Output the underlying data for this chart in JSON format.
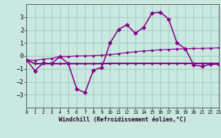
{
  "xlabel": "Windchill (Refroidissement éolien,°C)",
  "background_color": "#c8e8e0",
  "grid_color": "#a0c8bc",
  "line_color": "#880088",
  "x": [
    0,
    1,
    2,
    3,
    4,
    5,
    6,
    7,
    8,
    9,
    10,
    11,
    12,
    13,
    14,
    15,
    16,
    17,
    18,
    19,
    20,
    21,
    22,
    23
  ],
  "y_main": [
    -0.3,
    -1.15,
    -0.55,
    -0.6,
    -0.05,
    -0.6,
    -2.55,
    -2.85,
    -1.1,
    -0.9,
    1.0,
    2.05,
    2.4,
    1.75,
    2.2,
    3.3,
    3.38,
    2.85,
    1.0,
    0.55,
    -0.7,
    -0.8,
    -0.65,
    -0.65
  ],
  "y_flat": [
    -0.3,
    -0.6,
    -0.6,
    -0.6,
    -0.6,
    -0.6,
    -0.6,
    -0.6,
    -0.6,
    -0.6,
    -0.58,
    -0.58,
    -0.58,
    -0.58,
    -0.58,
    -0.58,
    -0.58,
    -0.58,
    -0.58,
    -0.58,
    -0.58,
    -0.58,
    -0.58,
    -0.58
  ],
  "y_trend": [
    -0.3,
    -0.35,
    -0.25,
    -0.2,
    -0.05,
    -0.05,
    -0.0,
    0.0,
    0.02,
    0.05,
    0.1,
    0.18,
    0.25,
    0.32,
    0.38,
    0.42,
    0.47,
    0.5,
    0.53,
    0.55,
    0.57,
    0.58,
    0.6,
    0.62
  ],
  "ylim": [
    -4,
    4
  ],
  "xlim": [
    0,
    23
  ],
  "yticks": [
    -3,
    -2,
    -1,
    0,
    1,
    2,
    3
  ]
}
